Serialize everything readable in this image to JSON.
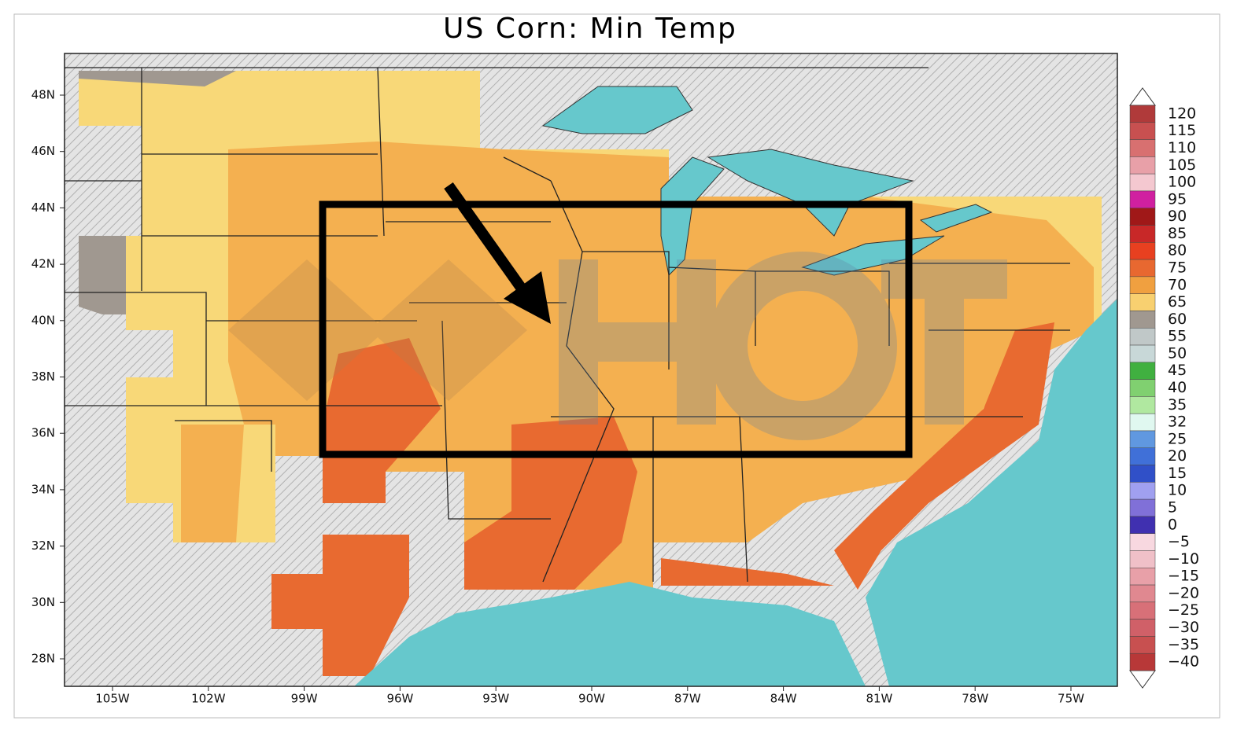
{
  "header": {
    "title": "US Corn: Min Temp"
  },
  "map": {
    "lat_labels": [
      "48N",
      "46N",
      "44N",
      "42N",
      "40N",
      "38N",
      "36N",
      "34N",
      "32N",
      "30N",
      "28N"
    ],
    "lon_labels": [
      "105W",
      "102W",
      "99W",
      "96W",
      "93W",
      "90W",
      "87W",
      "84W",
      "81W",
      "78W",
      "75W"
    ]
  },
  "colorbar": {
    "labels": [
      "120",
      "115",
      "110",
      "105",
      "100",
      "95",
      "90",
      "85",
      "80",
      "75",
      "70",
      "65",
      "60",
      "55",
      "50",
      "45",
      "40",
      "35",
      "32",
      "25",
      "20",
      "15",
      "10",
      "5",
      "0",
      "−5",
      "−10",
      "−15",
      "−20",
      "−25",
      "−30",
      "−35",
      "−40"
    ],
    "colors": [
      "#b03a3a",
      "#c85050",
      "#d87070",
      "#e8a0a8",
      "#f4c8d0",
      "#d020a0",
      "#a01818",
      "#c82828",
      "#e84020",
      "#e86830",
      "#f0a040",
      "#f8d070",
      "#a09890",
      "#c0c8c8",
      "#c8d8d8",
      "#40b040",
      "#80d070",
      "#b0e8a0",
      "#e0f8f0",
      "#6098e0",
      "#4070d8",
      "#3050c8",
      "#a0a0f0",
      "#8070d8",
      "#4030b0",
      "#f8d8e0",
      "#f0c0c8",
      "#e8a0a8",
      "#e08890",
      "#d87078",
      "#d06068",
      "#c85050",
      "#b83838"
    ]
  }
}
